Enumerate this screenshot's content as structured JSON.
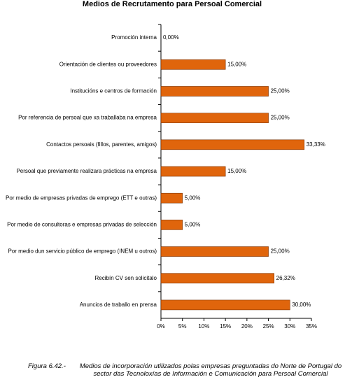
{
  "chart_data": {
    "type": "hbar",
    "title": "Medios de Recrutamento para Persoal Comercial",
    "categories": [
      "Promoción interna",
      "Orientación de clientes ou proveedores",
      "Institucións e centros de formación",
      "Por referencia de persoal que xa traballaba na empresa",
      "Contactos persoais (fillos, parentes, amigos)",
      "Persoal que previamente realizara prácticas na empresa",
      "Por medio de empresas privadas de emprego (ETT e outras)",
      "Por medio de consultoras e empresas privadas de selección",
      "Por medio dun servicio público de emprego (INEM u outros)",
      "Recibín CV sen solicitalo",
      "Anuncios de traballo en prensa"
    ],
    "values": [
      0,
      15,
      25,
      25,
      33.33,
      15,
      5,
      5,
      25,
      26.32,
      30
    ],
    "value_labels": [
      "0,00%",
      "15,00%",
      "25,00%",
      "25,00%",
      "33,33%",
      "15,00%",
      "5,00%",
      "5,00%",
      "25,00%",
      "26,32%",
      "30,00%"
    ],
    "color": "#e0650c",
    "xlim": [
      0,
      35
    ],
    "xticks": [
      {
        "value": 0,
        "label": "0%"
      },
      {
        "value": 5,
        "label": "5%"
      },
      {
        "value": 10,
        "label": "10%"
      },
      {
        "value": 15,
        "label": "15%"
      },
      {
        "value": 20,
        "label": "20%"
      },
      {
        "value": 25,
        "label": "25%"
      },
      {
        "value": 30,
        "label": "30%"
      },
      {
        "value": 35,
        "label": "35%"
      }
    ]
  },
  "caption": {
    "label": "Figura 6.42.-",
    "text": "Medios de incorporación utilizados polas empresas preguntadas do Norte de Portugal do sector das Tecnoloxías de Información e Comunicación para Persoal Comercial"
  }
}
